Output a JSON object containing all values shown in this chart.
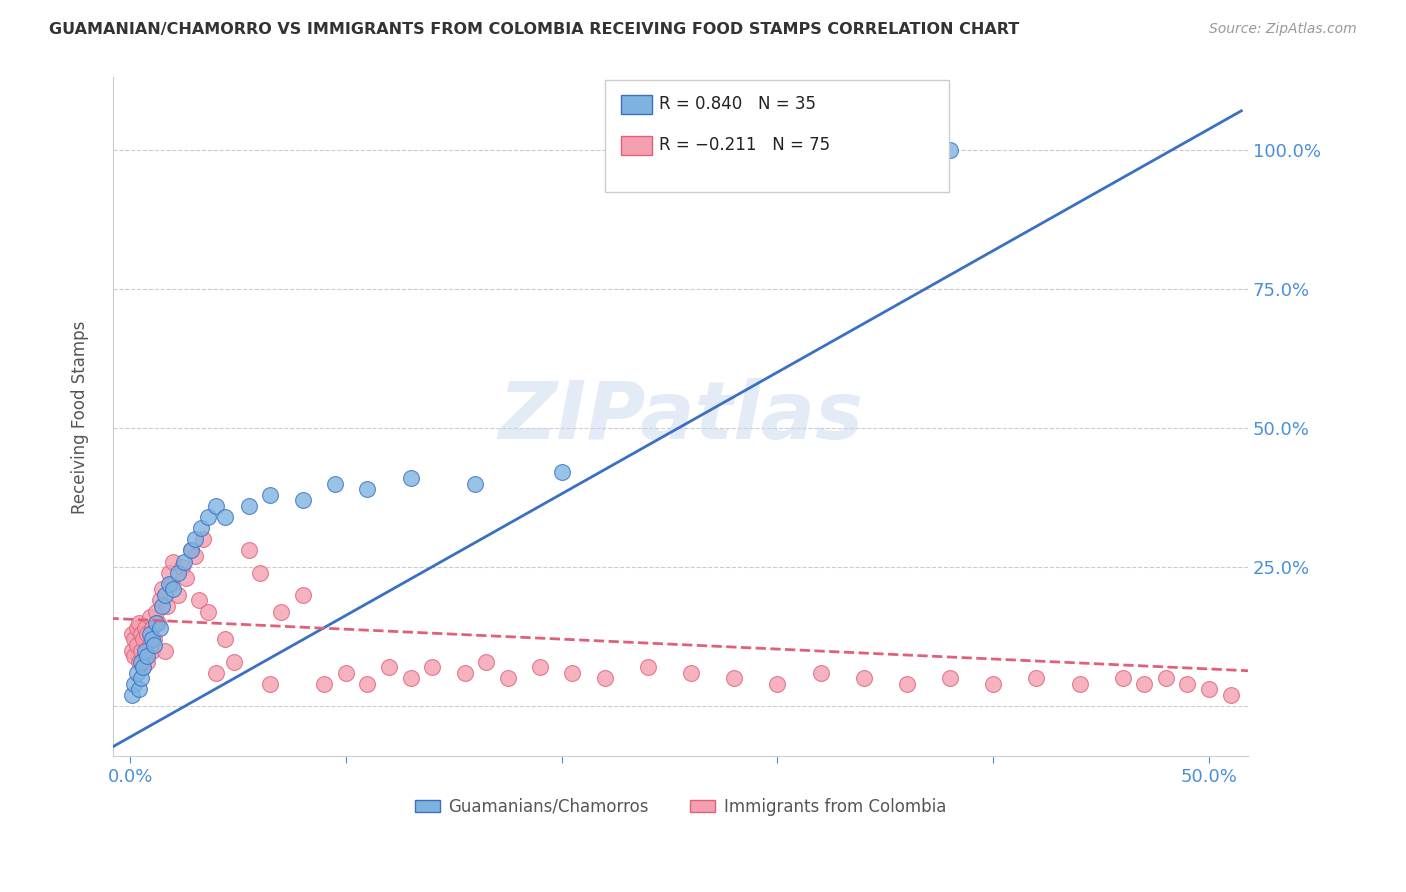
{
  "title": "GUAMANIAN/CHAMORRO VS IMMIGRANTS FROM COLOMBIA RECEIVING FOOD STAMPS CORRELATION CHART",
  "source": "Source: ZipAtlas.com",
  "ylabel": "Receiving Food Stamps",
  "watermark": "ZIPatlas",
  "blue_color": "#7eb3e0",
  "pink_color": "#f4a0b0",
  "blue_line_color": "#3a6fc4",
  "pink_line_color": "#e0607a",
  "blue_R": 0.84,
  "blue_N": 35,
  "pink_R": -0.211,
  "pink_N": 75,
  "legend_label_blue": "Guamanians/Chamorros",
  "legend_label_pink": "Immigrants from Colombia",
  "blue_x": [
    0.001,
    0.002,
    0.003,
    0.004,
    0.005,
    0.005,
    0.006,
    0.007,
    0.008,
    0.009,
    0.01,
    0.011,
    0.012,
    0.014,
    0.015,
    0.016,
    0.018,
    0.02,
    0.022,
    0.025,
    0.028,
    0.03,
    0.033,
    0.036,
    0.04,
    0.044,
    0.055,
    0.065,
    0.08,
    0.095,
    0.11,
    0.13,
    0.16,
    0.2,
    0.38
  ],
  "blue_y": [
    0.02,
    0.04,
    0.06,
    0.03,
    0.05,
    0.08,
    0.07,
    0.1,
    0.09,
    0.13,
    0.12,
    0.11,
    0.15,
    0.14,
    0.18,
    0.2,
    0.22,
    0.21,
    0.24,
    0.26,
    0.28,
    0.3,
    0.32,
    0.34,
    0.36,
    0.34,
    0.36,
    0.38,
    0.37,
    0.4,
    0.39,
    0.41,
    0.4,
    0.42,
    1.0
  ],
  "pink_x": [
    0.001,
    0.001,
    0.002,
    0.002,
    0.003,
    0.003,
    0.004,
    0.004,
    0.005,
    0.005,
    0.006,
    0.006,
    0.007,
    0.007,
    0.008,
    0.008,
    0.009,
    0.009,
    0.01,
    0.01,
    0.011,
    0.012,
    0.013,
    0.014,
    0.015,
    0.016,
    0.017,
    0.018,
    0.019,
    0.02,
    0.022,
    0.024,
    0.026,
    0.028,
    0.03,
    0.032,
    0.034,
    0.036,
    0.04,
    0.044,
    0.048,
    0.055,
    0.06,
    0.065,
    0.07,
    0.08,
    0.09,
    0.1,
    0.11,
    0.12,
    0.13,
    0.14,
    0.155,
    0.165,
    0.175,
    0.19,
    0.205,
    0.22,
    0.24,
    0.26,
    0.28,
    0.3,
    0.32,
    0.34,
    0.36,
    0.38,
    0.4,
    0.42,
    0.44,
    0.46,
    0.47,
    0.48,
    0.49,
    0.5,
    0.51
  ],
  "pink_y": [
    0.1,
    0.13,
    0.09,
    0.12,
    0.11,
    0.14,
    0.08,
    0.15,
    0.1,
    0.13,
    0.12,
    0.07,
    0.14,
    0.09,
    0.13,
    0.08,
    0.16,
    0.11,
    0.14,
    0.1,
    0.12,
    0.17,
    0.15,
    0.19,
    0.21,
    0.1,
    0.18,
    0.24,
    0.22,
    0.26,
    0.2,
    0.25,
    0.23,
    0.28,
    0.27,
    0.19,
    0.3,
    0.17,
    0.06,
    0.12,
    0.08,
    0.28,
    0.24,
    0.04,
    0.17,
    0.2,
    0.04,
    0.06,
    0.04,
    0.07,
    0.05,
    0.07,
    0.06,
    0.08,
    0.05,
    0.07,
    0.06,
    0.05,
    0.07,
    0.06,
    0.05,
    0.04,
    0.06,
    0.05,
    0.04,
    0.05,
    0.04,
    0.05,
    0.04,
    0.05,
    0.04,
    0.05,
    0.04,
    0.03,
    0.02
  ],
  "background_color": "#ffffff",
  "grid_color": "#cccccc",
  "title_color": "#333333",
  "axis_label_color": "#555555",
  "tick_color_right": "#4a90d9",
  "tick_color_bottom": "#4a90d9"
}
